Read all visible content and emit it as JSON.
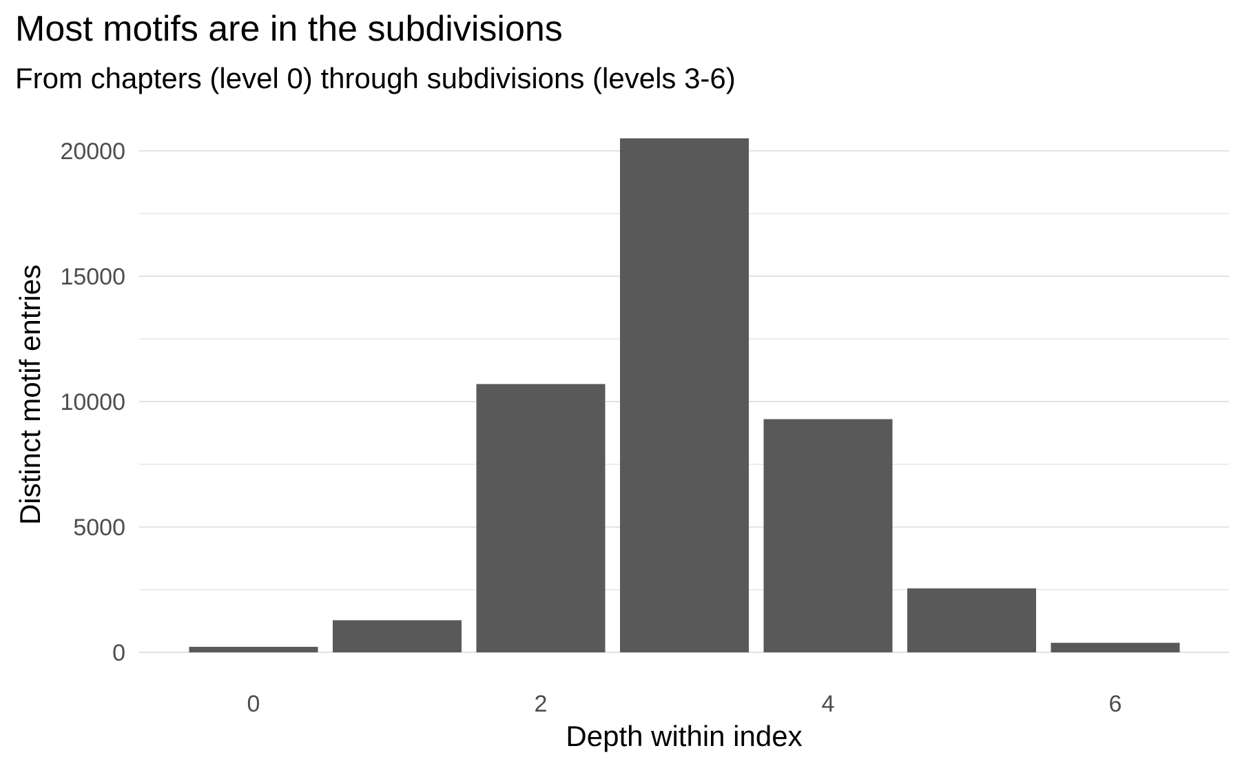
{
  "chart_data": {
    "type": "bar",
    "title": "Most motifs are in the subdivisions",
    "subtitle": "From chapters (level 0) through subdivisions (levels 3-6)",
    "xlabel": "Depth within index",
    "ylabel": "Distinct motif entries",
    "categories": [
      0,
      1,
      2,
      3,
      4,
      5,
      6
    ],
    "values": [
      220,
      1280,
      10700,
      20500,
      9300,
      2550,
      380
    ],
    "x_ticks": [
      "0",
      "2",
      "4",
      "6"
    ],
    "x_tick_positions": [
      0,
      2,
      4,
      6
    ],
    "y_ticks": [
      0,
      5000,
      10000,
      15000,
      20000
    ],
    "ylim": [
      0,
      21000
    ],
    "grid": true,
    "bar_color": "#595959",
    "grid_color": "#d9d9d9"
  }
}
